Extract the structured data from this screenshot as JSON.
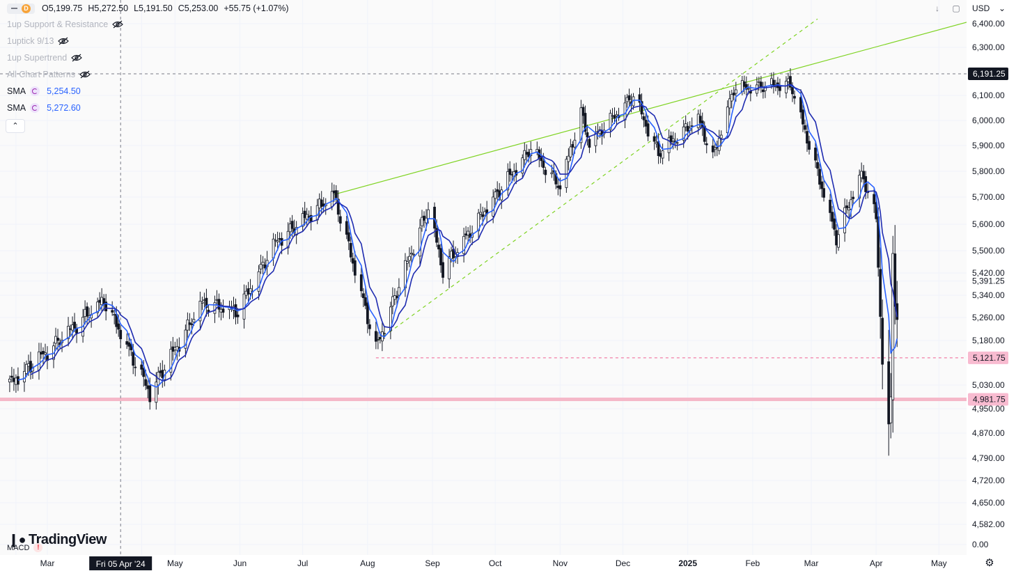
{
  "header": {
    "interval": "D",
    "open": "O5,199.75",
    "high": "H5,272.50",
    "low": "L5,191.50",
    "close": "C5,253.00",
    "change": "+55.75 (+1.07%)",
    "currency": "USD"
  },
  "indicators": [
    {
      "label": "1up Support & Resistance",
      "hidden": true
    },
    {
      "label": "1uptick 9/13",
      "hidden": true
    },
    {
      "label": "1up Supertrend",
      "hidden": true
    },
    {
      "label": "All Chart Patterns",
      "hidden": true
    }
  ],
  "sma": [
    {
      "label": "SMA",
      "value": "5,254.50"
    },
    {
      "label": "SMA",
      "value": "5,272.60"
    }
  ],
  "logo_text": "TradingView",
  "macd_label": "MACD",
  "colors": {
    "up": "#131722",
    "down": "#131722",
    "sma_fast": "#2962ff",
    "sma_slow": "#1e2bb0",
    "trend_line": "#7ed321",
    "support_band": "#f5b8c8",
    "marker_red": "#f06292"
  },
  "chart_data": {
    "type": "candlestick",
    "y_axis_ticks": [
      "6,400.00",
      "6,300.00",
      "6,100.00",
      "6,000.00",
      "5,900.00",
      "5,800.00",
      "5,700.00",
      "5,600.00",
      "5,500.00",
      "5,420.00",
      "5,391.25",
      "5,340.00",
      "5,260.00",
      "5,180.00",
      "5,030.00",
      "4,950.00",
      "4,870.00",
      "4,790.00",
      "4,720.00",
      "4,650.00",
      "4,582.00",
      "0.00"
    ],
    "price_labels": [
      {
        "value": 6191.25,
        "text": "6,191.25",
        "style": "dark"
      },
      {
        "value": 5121.75,
        "text": "5,121.75",
        "style": "red"
      },
      {
        "value": 4981.75,
        "text": "4,981.75",
        "style": "red"
      }
    ],
    "x_axis_labels": [
      "Mar",
      "May",
      "Jun",
      "Jul",
      "Aug",
      "Sep",
      "Oct",
      "Nov",
      "Dec",
      "2025",
      "Feb",
      "Mar",
      "Apr",
      "May"
    ],
    "crosshair_date": "Fri 05 Apr '24",
    "anchors": [
      [
        "2024-02-12",
        5030
      ],
      [
        "2024-03-04",
        5160
      ],
      [
        "2024-03-28",
        5320
      ],
      [
        "2024-04-19",
        5000
      ],
      [
        "2024-05-14",
        5310
      ],
      [
        "2024-05-31",
        5280
      ],
      [
        "2024-06-18",
        5530
      ],
      [
        "2024-07-16",
        5710
      ],
      [
        "2024-08-05",
        5150
      ],
      [
        "2024-08-30",
        5660
      ],
      [
        "2024-09-06",
        5430
      ],
      [
        "2024-10-18",
        5890
      ],
      [
        "2024-11-01",
        5740
      ],
      [
        "2024-11-11",
        6030
      ],
      [
        "2024-11-15",
        5910
      ],
      [
        "2024-12-06",
        6100
      ],
      [
        "2024-12-18",
        5870
      ],
      [
        "2025-01-06",
        6010
      ],
      [
        "2025-01-13",
        5850
      ],
      [
        "2025-01-23",
        6130
      ],
      [
        "2025-02-19",
        6150
      ],
      [
        "2025-03-13",
        5550
      ],
      [
        "2025-03-25",
        5800
      ],
      [
        "2025-04-01",
        5620
      ],
      [
        "2025-04-04",
        5100
      ],
      [
        "2025-04-07",
        4900
      ],
      [
        "2025-04-08",
        4990
      ],
      [
        "2025-04-09",
        5490
      ],
      [
        "2025-04-10",
        5300
      ],
      [
        "2025-04-11",
        5253
      ]
    ],
    "trend_lines": [
      {
        "from": [
          "2024-07-16",
          5710
        ],
        "to": [
          "2025-05-20",
          6420
        ],
        "style": "solid"
      },
      {
        "from": [
          "2024-08-06",
          5180
        ],
        "to": [
          "2025-03-04",
          6420
        ],
        "style": "dashed"
      }
    ],
    "horizontal_lines": [
      {
        "value": 6191.25,
        "style": "dashed-gray"
      },
      {
        "value": 5121.75,
        "style": "dashed-red",
        "from": "2024-08-05"
      },
      {
        "value": 4981.75,
        "style": "band"
      }
    ],
    "sma_periods": [
      5,
      9
    ],
    "legend_placement": "top-left"
  }
}
